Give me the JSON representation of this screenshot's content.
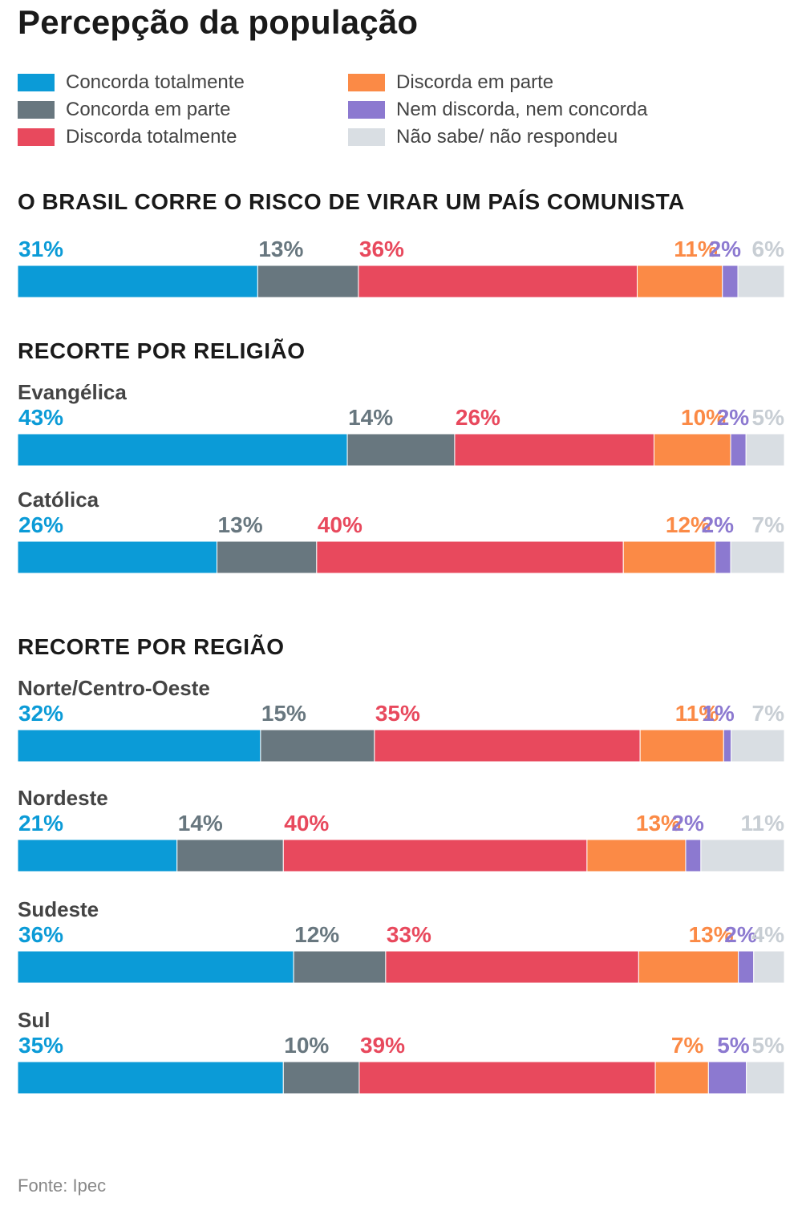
{
  "title": "Percepção da população",
  "source": "Fonte: Ipec",
  "colors": {
    "concorda_totalmente": "#0b9bd7",
    "concorda_em_parte": "#68777f",
    "discorda_totalmente": "#e8495d",
    "discorda_em_parte": "#fb8a46",
    "nem_discorda_nem_concorda": "#8c79d0",
    "nao_sabe": "#d9dee3"
  },
  "legend": [
    {
      "label": "Concorda totalmente",
      "color": "#0b9bd7"
    },
    {
      "label": "Concorda em parte",
      "color": "#68777f"
    },
    {
      "label": "Discorda totalmente",
      "color": "#e8495d"
    },
    {
      "label": "Discorda em parte",
      "color": "#fb8a46"
    },
    {
      "label": "Nem discorda, nem concorda",
      "color": "#8c79d0"
    },
    {
      "label": "Não sabe/ não respondeu",
      "color": "#d9dee3"
    }
  ],
  "sections": {
    "question": "O BRASIL CORRE O RISCO DE VIRAR UM PAÍS COMUNISTA",
    "religion": "RECORTE POR RELIGIÃO",
    "region": "RECORTE POR REGIÃO"
  },
  "chart_data": {
    "type": "bar",
    "stacked": true,
    "orientation": "horizontal",
    "categories": [
      "",
      "Evangélica",
      "Católica",
      "Norte/Centro-Oeste",
      "Nordeste",
      "Sudeste",
      "Sul"
    ],
    "series": [
      {
        "name": "Concorda totalmente",
        "values": [
          31,
          43,
          26,
          32,
          21,
          36,
          35
        ]
      },
      {
        "name": "Concorda em parte",
        "values": [
          13,
          14,
          13,
          15,
          14,
          12,
          10
        ]
      },
      {
        "name": "Discorda totalmente",
        "values": [
          36,
          26,
          40,
          35,
          40,
          33,
          39
        ]
      },
      {
        "name": "Discorda em parte",
        "values": [
          11,
          10,
          12,
          11,
          13,
          13,
          7
        ]
      },
      {
        "name": "Nem discorda, nem concorda",
        "values": [
          2,
          2,
          2,
          1,
          2,
          2,
          5
        ]
      },
      {
        "name": "Não sabe/ não respondeu",
        "values": [
          6,
          5,
          7,
          7,
          11,
          4,
          5
        ]
      }
    ],
    "value_suffix": "%"
  }
}
